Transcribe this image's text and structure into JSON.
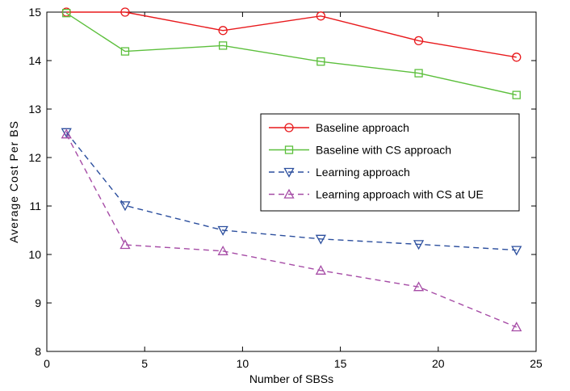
{
  "chart_data": {
    "type": "line",
    "title": "",
    "xlabel": "Number of SBSs",
    "ylabel": "Average Cost Per BS",
    "xlim": [
      0,
      25
    ],
    "ylim": [
      8,
      15
    ],
    "xticks": [
      0,
      5,
      10,
      15,
      20,
      25
    ],
    "yticks": [
      8,
      9,
      10,
      11,
      12,
      13,
      14,
      15
    ],
    "grid": false,
    "legend_position": "center-right",
    "series": [
      {
        "name": "Baseline approach",
        "color": "#e8191c",
        "line_style": "solid",
        "marker": "circle",
        "x": [
          1,
          4,
          9,
          14,
          19,
          24
        ],
        "y": [
          15.0,
          15.0,
          14.62,
          14.92,
          14.41,
          14.07
        ]
      },
      {
        "name": "Baseline with CS approach",
        "color": "#5cbf3c",
        "line_style": "solid",
        "marker": "square",
        "x": [
          1,
          4,
          9,
          14,
          19,
          24
        ],
        "y": [
          14.98,
          14.19,
          14.31,
          13.98,
          13.74,
          13.29
        ]
      },
      {
        "name": "Learning approach",
        "color": "#2c4f9e",
        "line_style": "dashed",
        "marker": "triangle-down",
        "x": [
          1,
          4,
          9,
          14,
          19,
          24
        ],
        "y": [
          12.52,
          11.01,
          10.5,
          10.32,
          10.21,
          10.09
        ]
      },
      {
        "name": "Learning approach with CS at UE",
        "color": "#a64ca6",
        "line_style": "dashed",
        "marker": "triangle-up",
        "x": [
          1,
          4,
          9,
          14,
          19,
          24
        ],
        "y": [
          12.48,
          10.2,
          10.07,
          9.67,
          9.33,
          8.5
        ]
      }
    ]
  }
}
